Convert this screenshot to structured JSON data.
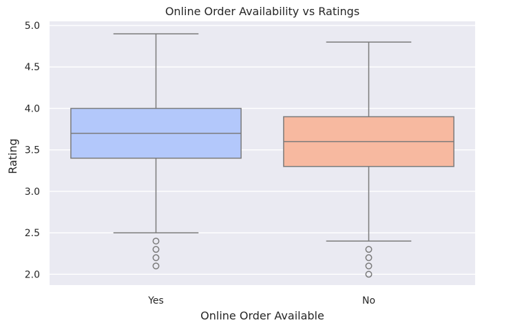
{
  "chart_data": {
    "type": "box",
    "title": "Online Order Availability vs Ratings",
    "xlabel": "Online Order Available",
    "ylabel": "Rating",
    "ylim": [
      1.87,
      5.05
    ],
    "yticks": [
      "2.0",
      "2.5",
      "3.0",
      "3.5",
      "4.0",
      "4.5",
      "5.0"
    ],
    "grid": true,
    "background_color": "#eaeaf2",
    "line_color": "#7a7a7a",
    "categories": [
      "Yes",
      "No"
    ],
    "boxes": [
      {
        "category": "Yes",
        "color": "#b3c8fb",
        "whisker_low": 2.5,
        "q1": 3.4,
        "median": 3.7,
        "q3": 4.0,
        "whisker_high": 4.9,
        "outliers": [
          2.4,
          2.3,
          2.2,
          2.1
        ]
      },
      {
        "category": "No",
        "color": "#f7b9a0",
        "whisker_low": 2.4,
        "q1": 3.3,
        "median": 3.6,
        "q3": 3.9,
        "whisker_high": 4.8,
        "outliers": [
          2.3,
          2.2,
          2.1,
          2.0
        ]
      }
    ]
  }
}
